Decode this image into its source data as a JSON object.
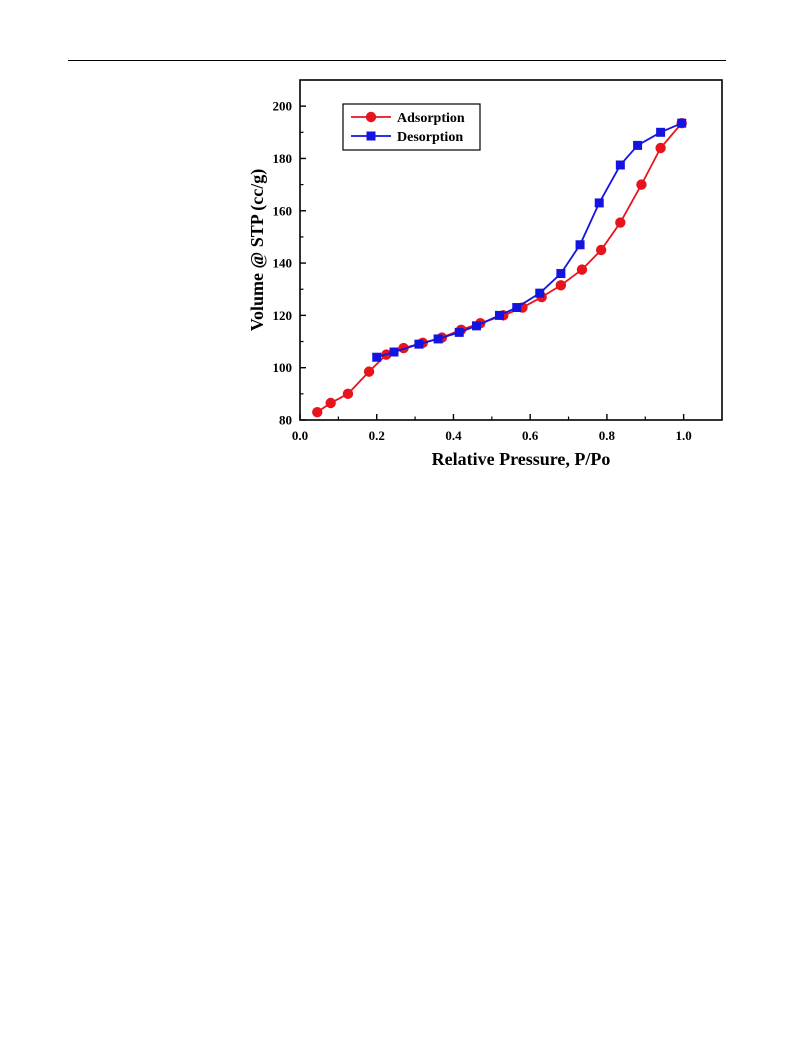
{
  "chart_data": {
    "type": "line",
    "xlabel": "Relative Pressure, P/Po",
    "ylabel": "Volume @ STP (cc/g)",
    "xlim": [
      0.0,
      1.1
    ],
    "ylim": [
      80,
      210
    ],
    "xticks": [
      0.0,
      0.2,
      0.4,
      0.6,
      0.8,
      1.0
    ],
    "yticks": [
      80,
      100,
      120,
      140,
      160,
      180,
      200
    ],
    "xtick_labels": [
      "0.0",
      "0.2",
      "0.4",
      "0.6",
      "0.8",
      "1.0"
    ],
    "ytick_labels": [
      "80",
      "100",
      "120",
      "140",
      "160",
      "180",
      "200"
    ],
    "grid": false,
    "legend_position": "top-left",
    "series": [
      {
        "name": "Adsorption",
        "color": "#e8141c",
        "marker": "circle",
        "x": [
          0.045,
          0.08,
          0.125,
          0.18,
          0.225,
          0.27,
          0.32,
          0.37,
          0.42,
          0.47,
          0.53,
          0.58,
          0.63,
          0.68,
          0.735,
          0.785,
          0.835,
          0.89,
          0.94,
          0.995
        ],
        "y": [
          83,
          86.5,
          90,
          98.5,
          105,
          107.5,
          109.5,
          111.5,
          114.5,
          117,
          120,
          123,
          127,
          131.5,
          137.5,
          145,
          155.5,
          170,
          184,
          193.5
        ]
      },
      {
        "name": "Desorption",
        "color": "#1414e0",
        "marker": "square",
        "x": [
          0.2,
          0.245,
          0.31,
          0.36,
          0.415,
          0.46,
          0.52,
          0.565,
          0.625,
          0.68,
          0.73,
          0.78,
          0.835,
          0.88,
          0.94,
          0.995
        ],
        "y": [
          104,
          106,
          109,
          111,
          113.5,
          116,
          120,
          123,
          128.5,
          136,
          147,
          163,
          177.5,
          185,
          190,
          193.5
        ]
      }
    ]
  }
}
